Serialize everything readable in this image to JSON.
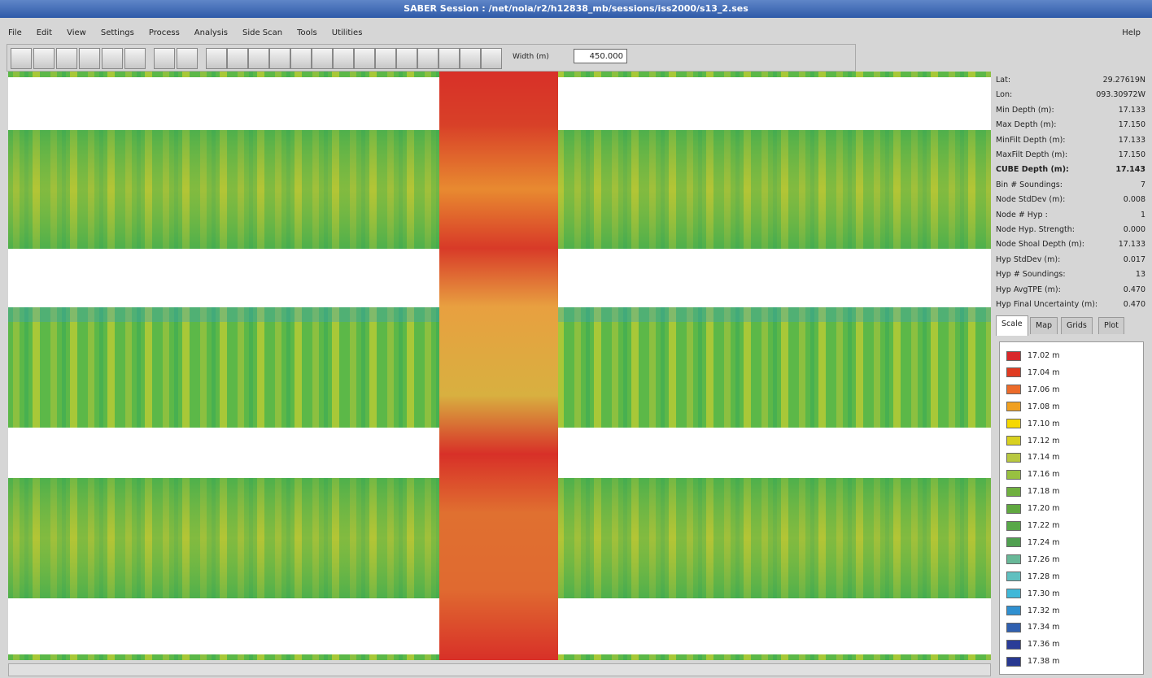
{
  "title_bar": {
    "title": "SABER Session : /net/nola/r2/h12838_mb/sessions/iss2000/s13_2.ses"
  },
  "menu": {
    "items": [
      "File",
      "Edit",
      "View",
      "Settings",
      "Process",
      "Analysis",
      "Side Scan",
      "Tools",
      "Utilities"
    ],
    "help": "Help"
  },
  "toolbar": {
    "width_label": "Width (m)",
    "width_value": "450.000"
  },
  "info_panel": {
    "rows": [
      {
        "label": "Lat:",
        "value": "29.27619N"
      },
      {
        "label": "Lon:",
        "value": "093.30972W"
      },
      {
        "label": "Min Depth (m):",
        "value": "17.133"
      },
      {
        "label": "Max Depth (m):",
        "value": "17.150"
      },
      {
        "label": "MinFilt Depth (m):",
        "value": "17.133"
      },
      {
        "label": "MaxFilt Depth (m):",
        "value": "17.150"
      },
      {
        "label": "CUBE Depth (m):",
        "value": "17.143",
        "bold": true
      },
      {
        "label": "Bin # Soundings:",
        "value": "7"
      },
      {
        "label": "Node StdDev (m):",
        "value": "0.008"
      },
      {
        "label": "Node # Hyp :",
        "value": "1"
      },
      {
        "label": "Node Hyp. Strength:",
        "value": "0.000"
      },
      {
        "label": "Node Shoal Depth (m):",
        "value": "17.133"
      },
      {
        "label": "Hyp StdDev (m):",
        "value": "0.017"
      },
      {
        "label": "Hyp # Soundings:",
        "value": "13"
      },
      {
        "label": "Hyp AvgTPE (m):",
        "value": "0.470"
      },
      {
        "label": "Hyp Final Uncertainty (m):",
        "value": "0.470"
      }
    ]
  },
  "tabs": {
    "items": [
      "Scale",
      "Map",
      "Grids",
      "Plot"
    ],
    "active": 0
  },
  "scale_legend": {
    "items": [
      {
        "label": "17.02 m",
        "color": "#d8282a"
      },
      {
        "label": "17.04 m",
        "color": "#e03b22"
      },
      {
        "label": "17.06 m",
        "color": "#ec6b2a"
      },
      {
        "label": "17.08 m",
        "color": "#f0a020"
      },
      {
        "label": "17.10 m",
        "color": "#f5d800"
      },
      {
        "label": "17.12 m",
        "color": "#d8d020"
      },
      {
        "label": "17.14 m",
        "color": "#b8c840"
      },
      {
        "label": "17.16 m",
        "color": "#98c040"
      },
      {
        "label": "17.18 m",
        "color": "#70b040"
      },
      {
        "label": "17.20 m",
        "color": "#60a840"
      },
      {
        "label": "17.22 m",
        "color": "#58a848"
      },
      {
        "label": "17.24 m",
        "color": "#50a050"
      },
      {
        "label": "17.26 m",
        "color": "#68b898"
      },
      {
        "label": "17.28 m",
        "color": "#60c0c0"
      },
      {
        "label": "17.30 m",
        "color": "#40b8d8"
      },
      {
        "label": "17.32 m",
        "color": "#3090d0"
      },
      {
        "label": "17.34 m",
        "color": "#3060b0"
      },
      {
        "label": "17.36 m",
        "color": "#2a3c98"
      },
      {
        "label": "17.38 m",
        "color": "#283890"
      }
    ]
  }
}
